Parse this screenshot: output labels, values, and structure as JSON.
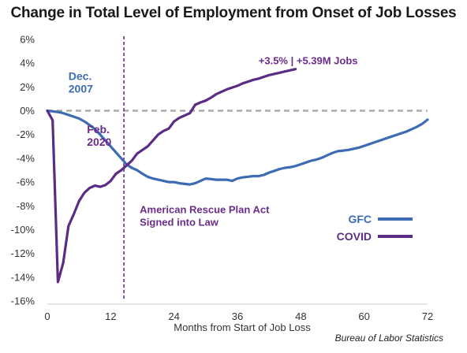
{
  "chart_data": {
    "type": "line",
    "title": "Change in Total Level of Employment from Onset of Job Losses",
    "xlabel": "Months from Start of Job Loss",
    "ylabel": "",
    "xlim": [
      0,
      72
    ],
    "ylim": [
      -16,
      6
    ],
    "x_ticks": [
      0,
      12,
      24,
      36,
      48,
      60,
      72
    ],
    "y_ticks": [
      6,
      4,
      2,
      0,
      -2,
      -4,
      -6,
      -8,
      -10,
      -12,
      -14,
      -16
    ],
    "y_tick_labels": [
      "6%",
      "4%",
      "2%",
      "0%",
      "-2%",
      "-4%",
      "-6%",
      "-8%",
      "-10%",
      "-12%",
      "-14%",
      "-16%"
    ],
    "x_tick_labels": [
      "0",
      "12",
      "24",
      "36",
      "48",
      "60",
      "72"
    ],
    "grid": false,
    "legend_position": "right",
    "series": [
      {
        "name": "GFC",
        "color": "#3d6cb4",
        "x": [
          0,
          1,
          2,
          3,
          4,
          5,
          6,
          7,
          8,
          9,
          10,
          11,
          12,
          13,
          14,
          15,
          16,
          17,
          18,
          19,
          20,
          21,
          22,
          23,
          24,
          25,
          26,
          27,
          28,
          29,
          30,
          31,
          32,
          33,
          34,
          35,
          36,
          37,
          38,
          39,
          40,
          41,
          42,
          43,
          44,
          45,
          46,
          47,
          48,
          49,
          50,
          51,
          52,
          53,
          54,
          55,
          56,
          57,
          58,
          59,
          60,
          61,
          62,
          63,
          64,
          65,
          66,
          67,
          68,
          69,
          70,
          71,
          72
        ],
        "values": [
          0,
          -0.05,
          -0.1,
          -0.2,
          -0.35,
          -0.5,
          -0.65,
          -0.9,
          -1.2,
          -1.55,
          -2.0,
          -2.5,
          -3.0,
          -3.5,
          -4.0,
          -4.5,
          -4.8,
          -5.0,
          -5.3,
          -5.55,
          -5.7,
          -5.8,
          -5.9,
          -6.0,
          -6.0,
          -6.1,
          -6.15,
          -6.2,
          -6.1,
          -5.9,
          -5.7,
          -5.75,
          -5.8,
          -5.8,
          -5.8,
          -5.9,
          -5.7,
          -5.6,
          -5.55,
          -5.5,
          -5.5,
          -5.4,
          -5.2,
          -5.05,
          -4.9,
          -4.8,
          -4.75,
          -4.65,
          -4.5,
          -4.35,
          -4.2,
          -4.1,
          -3.95,
          -3.75,
          -3.55,
          -3.4,
          -3.35,
          -3.3,
          -3.2,
          -3.1,
          -2.95,
          -2.8,
          -2.65,
          -2.5,
          -2.35,
          -2.2,
          -2.05,
          -1.9,
          -1.75,
          -1.55,
          -1.35,
          -1.1,
          -0.75
        ]
      },
      {
        "name": "COVID",
        "color": "#5b2c84",
        "x": [
          0,
          1,
          2,
          3,
          4,
          5,
          6,
          7,
          8,
          9,
          10,
          11,
          12,
          13,
          14,
          15,
          16,
          17,
          18,
          19,
          20,
          21,
          22,
          23,
          24,
          25,
          26,
          27,
          28,
          29,
          30,
          31,
          32,
          33,
          34,
          35,
          36,
          37,
          38,
          39,
          40,
          41,
          42,
          43,
          44,
          45,
          46,
          47
        ],
        "values": [
          0,
          -0.8,
          -14.4,
          -12.8,
          -9.7,
          -8.7,
          -7.6,
          -6.9,
          -6.5,
          -6.3,
          -6.4,
          -6.25,
          -5.9,
          -5.3,
          -5.0,
          -4.6,
          -4.2,
          -3.6,
          -3.3,
          -3.0,
          -2.5,
          -2.0,
          -1.7,
          -1.5,
          -0.9,
          -0.6,
          -0.4,
          -0.2,
          0.5,
          0.7,
          0.85,
          1.1,
          1.4,
          1.6,
          1.8,
          1.95,
          2.1,
          2.3,
          2.45,
          2.6,
          2.7,
          2.85,
          3.0,
          3.1,
          3.2,
          3.3,
          3.4,
          3.5
        ]
      }
    ],
    "reference_lines": [
      {
        "axis": "y",
        "value": 0,
        "style": "dashed",
        "color": "#aaaaaa"
      },
      {
        "axis": "x",
        "value": 14.5,
        "style": "dashed",
        "color": "#6a2c8a"
      }
    ],
    "annotations": [
      {
        "text_lines": [
          "Dec.",
          "2007"
        ],
        "color": "#3d6cb4",
        "anchor_x": 4,
        "anchor_y": 2.6
      },
      {
        "text_lines": [
          "Feb.",
          "2020"
        ],
        "color": "#6a2c8a",
        "anchor_x": 7.5,
        "anchor_y": -1.9
      },
      {
        "text_lines": [
          "+3.5% | +5.39M Jobs"
        ],
        "color": "#6a2c8a",
        "anchor_x": 40,
        "anchor_y": 3.9
      },
      {
        "text_lines": [
          "American Rescue Plan Act",
          "Signed into Law"
        ],
        "color": "#6a2c8a",
        "anchor_x": 17.5,
        "anchor_y": -8.6
      }
    ],
    "source": "Bureau of Labor Statistics"
  }
}
